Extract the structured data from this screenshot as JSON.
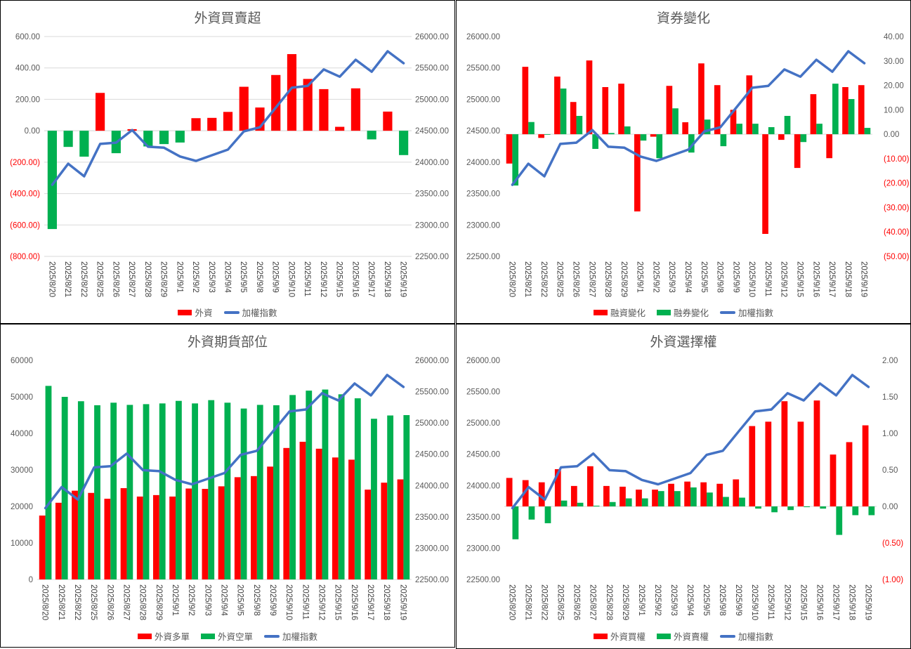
{
  "chart_data": [
    {
      "type": "bar",
      "title": "外資買賣超",
      "categories": [
        "2025/8/20",
        "2025/8/21",
        "2025/8/22",
        "2025/8/25",
        "2025/8/26",
        "2025/8/27",
        "2025/8/28",
        "2025/8/29",
        "2025/9/1",
        "2025/9/2",
        "2025/9/3",
        "2025/9/4",
        "2025/9/5",
        "2025/9/8",
        "2025/9/9",
        "2025/9/10",
        "2025/9/11",
        "2025/9/12",
        "2025/9/15",
        "2025/9/16",
        "2025/9/17",
        "2025/9/18",
        "2025/9/19"
      ],
      "left_axis": {
        "min": -800,
        "max": 600,
        "step": 200,
        "labels": [
          "(800.00)",
          "(600.00)",
          "(400.00)",
          "(200.00)",
          "0.00",
          "200.00",
          "400.00",
          "600.00"
        ]
      },
      "right_axis": {
        "min": 22500,
        "max": 26000,
        "step": 500,
        "labels": [
          "22500.00",
          "23000.00",
          "23500.00",
          "24000.00",
          "24500.00",
          "25000.00",
          "25500.00",
          "26000.00"
        ]
      },
      "grid": true,
      "series": [
        {
          "name": "外資",
          "kind": "bar",
          "axis": "left",
          "color": "#ff0000",
          "negative_color": "#00b050",
          "values": [
            -626,
            -103,
            -165,
            241,
            -143,
            10,
            -100,
            -85,
            -75,
            80,
            82,
            120,
            280,
            148,
            355,
            488,
            330,
            265,
            25,
            270,
            -55,
            122,
            -155
          ]
        },
        {
          "name": "加權指數",
          "kind": "line",
          "axis": "right",
          "color": "#4472c4",
          "values": [
            23640,
            23975,
            23775,
            24290,
            24310,
            24510,
            24245,
            24230,
            24090,
            24020,
            24110,
            24200,
            24490,
            24555,
            24870,
            25185,
            25215,
            25475,
            25360,
            25630,
            25440,
            25765,
            25575
          ]
        }
      ],
      "legend": [
        "外資",
        "加權指數"
      ]
    },
    {
      "type": "bar",
      "title": "資券變化",
      "categories": [
        "2025/8/20",
        "2025/8/21",
        "2025/8/22",
        "2025/8/25",
        "2025/8/26",
        "2025/8/27",
        "2025/8/28",
        "2025/8/29",
        "2025/9/1",
        "2025/9/2",
        "2025/9/3",
        "2025/9/4",
        "2025/9/5",
        "2025/9/8",
        "2025/9/9",
        "2025/9/10",
        "2025/9/11",
        "2025/9/12",
        "2025/9/15",
        "2025/9/16",
        "2025/9/17",
        "2025/9/18",
        "2025/9/19"
      ],
      "left_axis": {
        "min": 22500,
        "max": 26000,
        "step": 500,
        "labels": [
          "22500.00",
          "23000.00",
          "23500.00",
          "24000.00",
          "24500.00",
          "25000.00",
          "25500.00",
          "26000.00"
        ]
      },
      "right_axis": {
        "min": -50,
        "max": 40,
        "step": 10,
        "labels": [
          "(50.00)",
          "(40.00)",
          "(30.00)",
          "(20.00)",
          "(10.00)",
          "0.00",
          "10.00",
          "20.00",
          "30.00",
          "40.00"
        ]
      },
      "grid": false,
      "series": [
        {
          "name": "融資變化",
          "kind": "bar",
          "axis": "right",
          "color": "#ff0000",
          "values": [
            -12,
            27.6,
            -1.5,
            23.6,
            13.2,
            30.2,
            19.3,
            20.7,
            -31.6,
            -1,
            19.8,
            4.9,
            29,
            20.1,
            10,
            24.1,
            -40.8,
            -2.3,
            -13.8,
            16.4,
            -9.8,
            19.3,
            20.1
          ]
        },
        {
          "name": "融券變化",
          "kind": "bar",
          "axis": "right",
          "color": "#00b050",
          "values": [
            -21,
            5,
            0,
            18.7,
            7.5,
            -6,
            0.5,
            3.2,
            -2.6,
            -9.8,
            10.6,
            -7.5,
            6,
            -4.9,
            4.3,
            4.3,
            2.9,
            7.5,
            -3.2,
            4.3,
            20.7,
            14.4,
            2.6
          ]
        },
        {
          "name": "加權指數",
          "kind": "line",
          "axis": "left",
          "color": "#4472c4",
          "values": [
            23640,
            23975,
            23775,
            24290,
            24310,
            24510,
            24245,
            24230,
            24090,
            24020,
            24110,
            24200,
            24490,
            24555,
            24870,
            25185,
            25215,
            25475,
            25360,
            25630,
            25440,
            25765,
            25575
          ]
        }
      ],
      "legend": [
        "融資變化",
        "融券變化",
        "加權指數"
      ]
    },
    {
      "type": "bar",
      "title": "外資期貨部位",
      "categories": [
        "2025/8/20",
        "2025/8/21",
        "2025/8/22",
        "2025/8/25",
        "2025/8/26",
        "2025/8/27",
        "2025/8/28",
        "2025/8/29",
        "2025/9/1",
        "2025/9/2",
        "2025/9/3",
        "2025/9/4",
        "2025/9/5",
        "2025/9/8",
        "2025/9/9",
        "2025/9/10",
        "2025/9/11",
        "2025/9/12",
        "2025/9/15",
        "2025/9/16",
        "2025/9/17",
        "2025/9/18",
        "2025/9/19"
      ],
      "left_axis": {
        "min": 0,
        "max": 60000,
        "step": 10000,
        "labels": [
          "0",
          "10000",
          "20000",
          "30000",
          "40000",
          "50000",
          "60000"
        ]
      },
      "right_axis": {
        "min": 22500,
        "max": 26000,
        "step": 500,
        "labels": [
          "22500.00",
          "23000.00",
          "23500.00",
          "24000.00",
          "24500.00",
          "25000.00",
          "25500.00",
          "26000.00"
        ]
      },
      "grid": false,
      "series": [
        {
          "name": "外資多單",
          "kind": "bar",
          "axis": "left",
          "color": "#ff0000",
          "values": [
            17500,
            21000,
            24300,
            23700,
            22100,
            25000,
            22700,
            23100,
            22700,
            24900,
            24800,
            25500,
            28000,
            28300,
            30900,
            36000,
            37700,
            35800,
            33400,
            32800,
            24600,
            26500,
            27400
          ]
        },
        {
          "name": "外資空單",
          "kind": "bar",
          "axis": "left",
          "color": "#00b050",
          "values": [
            53000,
            50000,
            48800,
            47700,
            48400,
            47800,
            48000,
            48200,
            48900,
            48200,
            49100,
            48400,
            46800,
            47800,
            47700,
            50500,
            51700,
            52000,
            50700,
            49600,
            44000,
            44900,
            45000
          ]
        },
        {
          "name": "加權指數",
          "kind": "line",
          "axis": "right",
          "color": "#4472c4",
          "values": [
            23640,
            23975,
            23775,
            24290,
            24310,
            24510,
            24245,
            24230,
            24090,
            24020,
            24110,
            24200,
            24490,
            24555,
            24870,
            25185,
            25215,
            25475,
            25360,
            25630,
            25440,
            25765,
            25575
          ]
        }
      ],
      "legend": [
        "外資多單",
        "外資空單",
        "加權指數"
      ]
    },
    {
      "type": "bar",
      "title": "外資選擇權",
      "categories": [
        "2025/8/20",
        "2025/8/21",
        "2025/8/22",
        "2025/8/25",
        "2025/8/26",
        "2025/8/27",
        "2025/8/28",
        "2025/8/29",
        "2025/9/1",
        "2025/9/2",
        "2025/9/3",
        "2025/9/4",
        "2025/9/5",
        "2025/9/8",
        "2025/9/9",
        "2025/9/10",
        "2025/9/11",
        "2025/9/12",
        "2025/9/15",
        "2025/9/16",
        "2025/9/17",
        "2025/9/18",
        "2025/9/19"
      ],
      "left_axis": {
        "min": 22500,
        "max": 26000,
        "step": 500,
        "labels": [
          "22500.00",
          "23000.00",
          "23500.00",
          "24000.00",
          "24500.00",
          "25000.00",
          "25500.00",
          "26000.00"
        ]
      },
      "right_axis": {
        "min": -1,
        "max": 2,
        "step": 0.5,
        "labels": [
          "(1.00)",
          "(0.50)",
          "0.00",
          "0.50",
          "1.00",
          "1.50",
          "2.00"
        ]
      },
      "grid": false,
      "series": [
        {
          "name": "外資買權",
          "kind": "bar",
          "axis": "right",
          "color": "#ff0000",
          "values": [
            0.39,
            0.36,
            0.33,
            0.51,
            0.28,
            0.55,
            0.28,
            0.27,
            0.23,
            0.23,
            0.31,
            0.34,
            0.33,
            0.31,
            0.37,
            1.1,
            1.16,
            1.44,
            1.16,
            1.45,
            0.71,
            0.88,
            1.11
          ]
        },
        {
          "name": "外資賣權",
          "kind": "bar",
          "axis": "right",
          "color": "#00b050",
          "values": [
            -0.45,
            -0.18,
            -0.23,
            0.08,
            0.05,
            0.01,
            0.06,
            0.11,
            0.11,
            0.21,
            0.21,
            0.26,
            0.19,
            0.13,
            0.12,
            -0.03,
            -0.08,
            -0.05,
            -0.01,
            -0.03,
            -0.39,
            -0.12,
            -0.12
          ]
        },
        {
          "name": "加權指數",
          "kind": "line",
          "axis": "left",
          "color": "#4472c4",
          "values": [
            23640,
            23975,
            23775,
            24290,
            24310,
            24510,
            24245,
            24230,
            24090,
            24020,
            24110,
            24200,
            24490,
            24555,
            24870,
            25185,
            25215,
            25475,
            25360,
            25630,
            25440,
            25765,
            25575
          ]
        }
      ],
      "legend": [
        "外資買權",
        "外資賣權",
        "加權指數"
      ]
    }
  ]
}
